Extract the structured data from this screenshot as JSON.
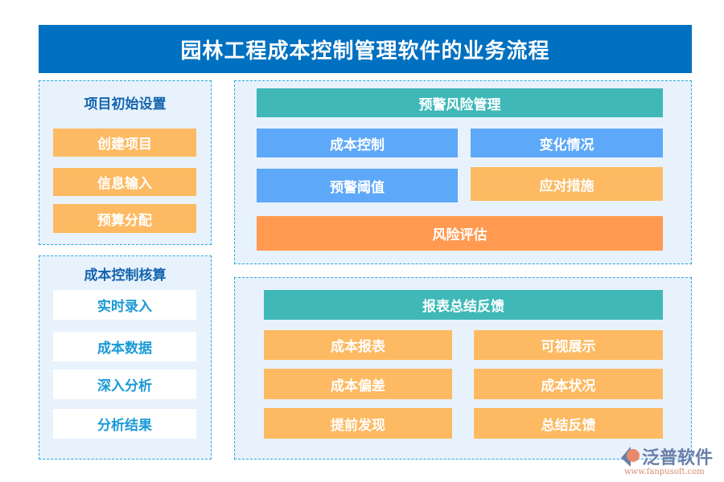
{
  "title": "园林工程成本控制管理软件的业务流程",
  "left_top": {
    "title": "项目初始设置",
    "items": [
      "创建项目",
      "信息输入",
      "预算分配"
    ]
  },
  "left_bottom": {
    "title": "成本控制核算",
    "items": [
      "实时录入",
      "成本数据",
      "深入分析",
      "分析结果"
    ]
  },
  "right_top": {
    "header": "预警风险管理",
    "items": [
      "成本控制",
      "变化情况",
      "预警阈值",
      "应对措施"
    ],
    "footer": "风险评估"
  },
  "right_bottom": {
    "header": "报表总结反馈",
    "items": [
      "成本报表",
      "可视展示",
      "成本偏差",
      "成本状况",
      "提前发现",
      "总结反馈"
    ]
  },
  "logo": {
    "name": "泛普软件",
    "url": "www.fanpusoft.com"
  },
  "colors": {
    "title": "#0070c0",
    "orange": "#fdba62",
    "blue": "#5da8f8",
    "teal": "#40b8b8",
    "risk": "#ff9a50"
  }
}
